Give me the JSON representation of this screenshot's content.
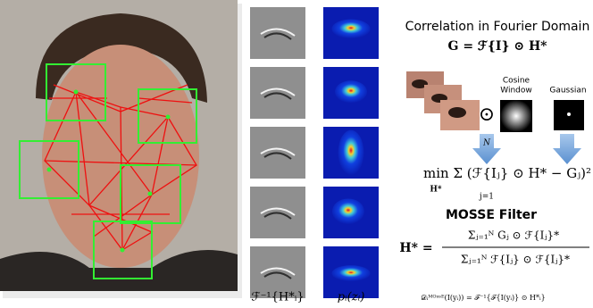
{
  "figure": {
    "filter_label": "ℱ⁻¹{H*ᵢ}",
    "response_label": "pᵢ(zᵢ)",
    "title": "Correlation in Fourier Domain",
    "correlation_eq": "G = ℱ{I} ⊙ H*",
    "odot": "⊙",
    "cosine_label": [
      "Cosine",
      "Window"
    ],
    "gaussian_label": "Gaussian",
    "objective": "min Σ (ℱ{Iⱼ} ⊙ H* − Gⱼ)²",
    "objective_under": "H*",
    "objective_sum_top": "N",
    "objective_sum_bottom": "j=1",
    "mosse_title": "MOSSE Filter",
    "mosse_lhs": "H* =",
    "mosse_numerator": "Σⱼ₌₁ᴺ Gⱼ ⊙ ℱ{Iⱼ}*",
    "mosse_denominator": "Σⱼ₌₁ᴺ ℱ{Iⱼ} ⊙ ℱ{Iⱼ}*",
    "response_eq": "𝒟ᵢᴹᴼˢˢᴱ(I(yᵢ)) = ℱ⁻¹{ℱ{I(yᵢ)} ⊙ H*ᵢ}"
  }
}
